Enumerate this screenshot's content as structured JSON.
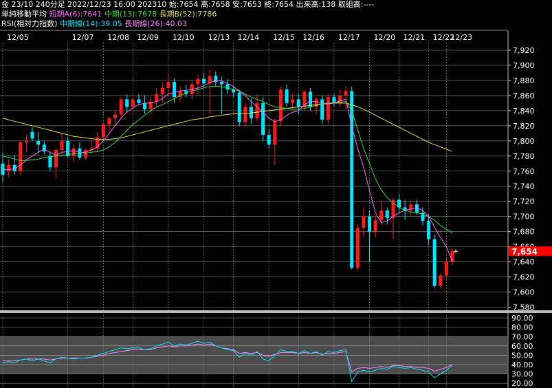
{
  "header": {
    "line1": "金 23/10 240分足 2022/12/23 16:00 202310 始:7654 高:7658 安:7653 終:7654 出来高:138 取組高:----",
    "ma_title": "単純移動平均",
    "ma_short": "短期A(6):7641",
    "ma_mid": "中期(13):7678",
    "ma_long": "長期B(52):7786",
    "rsi_title": "RSI(相対力指数)",
    "rsi_mid": "中期線(14):39.05",
    "rsi_long": "長期線(26):40.03"
  },
  "colors": {
    "background": "#000000",
    "up": "#ff1a1a",
    "down": "#00e5ff",
    "ma_short": "#ff66ff",
    "ma_mid": "#33dd33",
    "ma_long": "#dddd55",
    "rsi_mid": "#00e5ff",
    "rsi_long": "#ff88ff",
    "price_tag": "#ff0000",
    "grid": "#ffffff",
    "rsi_band": "#888888"
  },
  "chart_data": {
    "type": "candlestick",
    "xlabels": [
      "12/05",
      "12/07",
      "12/08",
      "12/09",
      "12/10",
      "12/13",
      "12/14",
      "12/15",
      "12/16",
      "12/17",
      "12/20",
      "12/21",
      "12/22",
      "12/23"
    ],
    "price_axis": {
      "ticks": [
        7580,
        7600,
        7620,
        7640,
        7660,
        7680,
        7700,
        7720,
        7740,
        7760,
        7780,
        7800,
        7820,
        7840,
        7860,
        7880,
        7900,
        7920
      ],
      "ylim": [
        7575,
        7930
      ]
    },
    "current_price": "7,654",
    "candles": [
      {
        "o": 7770,
        "h": 7785,
        "l": 7745,
        "c": 7755
      },
      {
        "o": 7760,
        "h": 7775,
        "l": 7752,
        "c": 7768
      },
      {
        "o": 7768,
        "h": 7782,
        "l": 7755,
        "c": 7760
      },
      {
        "o": 7760,
        "h": 7800,
        "l": 7755,
        "c": 7798
      },
      {
        "o": 7798,
        "h": 7808,
        "l": 7785,
        "c": 7800
      },
      {
        "o": 7812,
        "h": 7818,
        "l": 7800,
        "c": 7803
      },
      {
        "o": 7800,
        "h": 7812,
        "l": 7783,
        "c": 7795
      },
      {
        "o": 7795,
        "h": 7800,
        "l": 7782,
        "c": 7786
      },
      {
        "o": 7780,
        "h": 7785,
        "l": 7760,
        "c": 7765
      },
      {
        "o": 7765,
        "h": 7790,
        "l": 7750,
        "c": 7788
      },
      {
        "o": 7788,
        "h": 7810,
        "l": 7780,
        "c": 7800
      },
      {
        "o": 7800,
        "h": 7805,
        "l": 7778,
        "c": 7780
      },
      {
        "o": 7780,
        "h": 7795,
        "l": 7772,
        "c": 7790
      },
      {
        "o": 7790,
        "h": 7798,
        "l": 7775,
        "c": 7778
      },
      {
        "o": 7778,
        "h": 7790,
        "l": 7775,
        "c": 7788
      },
      {
        "o": 7788,
        "h": 7800,
        "l": 7782,
        "c": 7790
      },
      {
        "o": 7790,
        "h": 7812,
        "l": 7785,
        "c": 7805
      },
      {
        "o": 7805,
        "h": 7825,
        "l": 7800,
        "c": 7822
      },
      {
        "o": 7822,
        "h": 7832,
        "l": 7812,
        "c": 7830
      },
      {
        "o": 7830,
        "h": 7842,
        "l": 7820,
        "c": 7835
      },
      {
        "o": 7835,
        "h": 7858,
        "l": 7830,
        "c": 7855
      },
      {
        "o": 7855,
        "h": 7862,
        "l": 7838,
        "c": 7845
      },
      {
        "o": 7845,
        "h": 7858,
        "l": 7840,
        "c": 7855
      },
      {
        "o": 7855,
        "h": 7862,
        "l": 7848,
        "c": 7850
      },
      {
        "o": 7850,
        "h": 7860,
        "l": 7836,
        "c": 7842
      },
      {
        "o": 7842,
        "h": 7858,
        "l": 7835,
        "c": 7852
      },
      {
        "o": 7852,
        "h": 7870,
        "l": 7845,
        "c": 7862
      },
      {
        "o": 7862,
        "h": 7878,
        "l": 7850,
        "c": 7870
      },
      {
        "o": 7870,
        "h": 7888,
        "l": 7860,
        "c": 7878
      },
      {
        "o": 7878,
        "h": 7883,
        "l": 7850,
        "c": 7858
      },
      {
        "o": 7858,
        "h": 7872,
        "l": 7852,
        "c": 7866
      },
      {
        "o": 7866,
        "h": 7874,
        "l": 7858,
        "c": 7862
      },
      {
        "o": 7862,
        "h": 7880,
        "l": 7855,
        "c": 7875
      },
      {
        "o": 7875,
        "h": 7888,
        "l": 7860,
        "c": 7882
      },
      {
        "o": 7882,
        "h": 7890,
        "l": 7870,
        "c": 7876
      },
      {
        "o": 7876,
        "h": 7895,
        "l": 7835,
        "c": 7886
      },
      {
        "o": 7886,
        "h": 7892,
        "l": 7872,
        "c": 7878
      },
      {
        "o": 7878,
        "h": 7885,
        "l": 7835,
        "c": 7875
      },
      {
        "o": 7875,
        "h": 7882,
        "l": 7862,
        "c": 7868
      },
      {
        "o": 7868,
        "h": 7872,
        "l": 7858,
        "c": 7864
      },
      {
        "o": 7864,
        "h": 7868,
        "l": 7820,
        "c": 7825
      },
      {
        "o": 7825,
        "h": 7850,
        "l": 7818,
        "c": 7845
      },
      {
        "o": 7845,
        "h": 7856,
        "l": 7822,
        "c": 7830
      },
      {
        "o": 7830,
        "h": 7862,
        "l": 7825,
        "c": 7850
      },
      {
        "o": 7850,
        "h": 7858,
        "l": 7800,
        "c": 7808
      },
      {
        "o": 7808,
        "h": 7815,
        "l": 7790,
        "c": 7795
      },
      {
        "o": 7795,
        "h": 7830,
        "l": 7768,
        "c": 7826
      },
      {
        "o": 7826,
        "h": 7872,
        "l": 7820,
        "c": 7868
      },
      {
        "o": 7868,
        "h": 7875,
        "l": 7845,
        "c": 7850
      },
      {
        "o": 7850,
        "h": 7862,
        "l": 7842,
        "c": 7855
      },
      {
        "o": 7855,
        "h": 7862,
        "l": 7835,
        "c": 7845
      },
      {
        "o": 7845,
        "h": 7868,
        "l": 7840,
        "c": 7865
      },
      {
        "o": 7865,
        "h": 7870,
        "l": 7840,
        "c": 7845
      },
      {
        "o": 7845,
        "h": 7858,
        "l": 7835,
        "c": 7855
      },
      {
        "o": 7855,
        "h": 7860,
        "l": 7822,
        "c": 7828
      },
      {
        "o": 7828,
        "h": 7862,
        "l": 7822,
        "c": 7858
      },
      {
        "o": 7858,
        "h": 7862,
        "l": 7845,
        "c": 7850
      },
      {
        "o": 7850,
        "h": 7868,
        "l": 7845,
        "c": 7860
      },
      {
        "o": 7860,
        "h": 7872,
        "l": 7842,
        "c": 7866
      },
      {
        "o": 7866,
        "h": 7872,
        "l": 7630,
        "c": 7632
      },
      {
        "o": 7632,
        "h": 7690,
        "l": 7628,
        "c": 7685
      },
      {
        "o": 7685,
        "h": 7712,
        "l": 7672,
        "c": 7700
      },
      {
        "o": 7700,
        "h": 7708,
        "l": 7640,
        "c": 7680
      },
      {
        "o": 7680,
        "h": 7702,
        "l": 7672,
        "c": 7695
      },
      {
        "o": 7695,
        "h": 7720,
        "l": 7688,
        "c": 7708
      },
      {
        "o": 7708,
        "h": 7712,
        "l": 7690,
        "c": 7698
      },
      {
        "o": 7698,
        "h": 7725,
        "l": 7670,
        "c": 7722
      },
      {
        "o": 7722,
        "h": 7730,
        "l": 7705,
        "c": 7712
      },
      {
        "o": 7712,
        "h": 7722,
        "l": 7695,
        "c": 7708
      },
      {
        "o": 7708,
        "h": 7720,
        "l": 7700,
        "c": 7716
      },
      {
        "o": 7716,
        "h": 7722,
        "l": 7702,
        "c": 7705
      },
      {
        "o": 7705,
        "h": 7712,
        "l": 7688,
        "c": 7694
      },
      {
        "o": 7694,
        "h": 7702,
        "l": 7662,
        "c": 7670
      },
      {
        "o": 7670,
        "h": 7676,
        "l": 7605,
        "c": 7608
      },
      {
        "o": 7608,
        "h": 7625,
        "l": 7605,
        "c": 7622
      },
      {
        "o": 7622,
        "h": 7645,
        "l": 7618,
        "c": 7640
      },
      {
        "o": 7640,
        "h": 7658,
        "l": 7636,
        "c": 7654
      }
    ],
    "ma_short": [
      7762,
      7762,
      7763,
      7768,
      7775,
      7780,
      7785,
      7789,
      7785,
      7781,
      7785,
      7786,
      7787,
      7785,
      7785,
      7788,
      7792,
      7800,
      7810,
      7820,
      7830,
      7838,
      7844,
      7848,
      7850,
      7850,
      7852,
      7856,
      7862,
      7864,
      7866,
      7867,
      7868,
      7870,
      7873,
      7877,
      7880,
      7879,
      7876,
      7872,
      7866,
      7860,
      7852,
      7845,
      7838,
      7830,
      7826,
      7828,
      7834,
      7838,
      7840,
      7848,
      7852,
      7852,
      7850,
      7849,
      7850,
      7853,
      7855,
      7820,
      7790,
      7765,
      7735,
      7705,
      7692,
      7694,
      7700,
      7705,
      7708,
      7710,
      7712,
      7708,
      7700,
      7686,
      7672,
      7660,
      7641
    ],
    "ma_mid": [
      7780,
      7778,
      7776,
      7774,
      7774,
      7775,
      7776,
      7778,
      7779,
      7780,
      7781,
      7782,
      7783,
      7784,
      7784,
      7785,
      7786,
      7788,
      7792,
      7798,
      7806,
      7814,
      7822,
      7828,
      7834,
      7840,
      7845,
      7848,
      7852,
      7856,
      7860,
      7864,
      7866,
      7868,
      7870,
      7872,
      7872,
      7872,
      7870,
      7868,
      7866,
      7862,
      7858,
      7855,
      7852,
      7848,
      7845,
      7844,
      7843,
      7842,
      7842,
      7843,
      7845,
      7847,
      7849,
      7850,
      7851,
      7851,
      7852,
      7840,
      7815,
      7790,
      7770,
      7750,
      7735,
      7725,
      7718,
      7712,
      7708,
      7706,
      7705,
      7703,
      7700,
      7695,
      7688,
      7683,
      7678
    ],
    "ma_long": [
      7830,
      7828,
      7826,
      7824,
      7822,
      7820,
      7818,
      7816,
      7814,
      7812,
      7810,
      7808,
      7806,
      7805,
      7804,
      7803,
      7802,
      7802,
      7802,
      7803,
      7804,
      7806,
      7808,
      7810,
      7812,
      7814,
      7816,
      7818,
      7820,
      7822,
      7824,
      7826,
      7828,
      7829,
      7830,
      7832,
      7833,
      7834,
      7835,
      7836,
      7836,
      7836,
      7837,
      7838,
      7839,
      7840,
      7841,
      7842,
      7843,
      7844,
      7845,
      7846,
      7847,
      7848,
      7849,
      7849,
      7850,
      7850,
      7850,
      7848,
      7845,
      7842,
      7838,
      7834,
      7830,
      7826,
      7822,
      7818,
      7814,
      7810,
      7806,
      7802,
      7798,
      7795,
      7792,
      7789,
      7786
    ],
    "rsi_axis": {
      "ticks": [
        20,
        30,
        40,
        50,
        60,
        70,
        80,
        90
      ],
      "labels": [
        "20.00",
        "30.00",
        "40.00",
        "50.00",
        "60.00",
        "70.00",
        "80.00",
        "90.00"
      ],
      "ylim": [
        15,
        93
      ]
    },
    "rsi_mid": [
      42,
      43,
      42,
      45,
      46,
      44,
      46,
      44,
      42,
      46,
      48,
      47,
      46,
      47,
      47,
      48,
      50,
      52,
      54,
      56,
      58,
      57,
      58,
      58,
      56,
      57,
      60,
      62,
      64,
      60,
      62,
      61,
      63,
      65,
      63,
      64,
      60,
      58,
      56,
      55,
      48,
      52,
      50,
      54,
      46,
      44,
      50,
      56,
      54,
      54,
      52,
      55,
      52,
      54,
      50,
      54,
      53,
      55,
      56,
      22,
      32,
      34,
      32,
      34,
      36,
      35,
      38,
      37,
      36,
      37,
      35,
      34,
      32,
      26,
      30,
      34,
      39
    ],
    "rsi_long": [
      44,
      44,
      44,
      45,
      46,
      46,
      46,
      46,
      45,
      46,
      47,
      47,
      47,
      47,
      47,
      48,
      49,
      50,
      52,
      53,
      54,
      55,
      56,
      56,
      56,
      56,
      58,
      59,
      60,
      59,
      60,
      60,
      61,
      62,
      61,
      62,
      60,
      58,
      57,
      56,
      52,
      53,
      52,
      53,
      50,
      49,
      51,
      53,
      53,
      53,
      52,
      53,
      52,
      53,
      51,
      52,
      52,
      53,
      54,
      32,
      36,
      37,
      36,
      37,
      38,
      37,
      39,
      39,
      38,
      38,
      37,
      37,
      36,
      33,
      35,
      37,
      40
    ]
  }
}
